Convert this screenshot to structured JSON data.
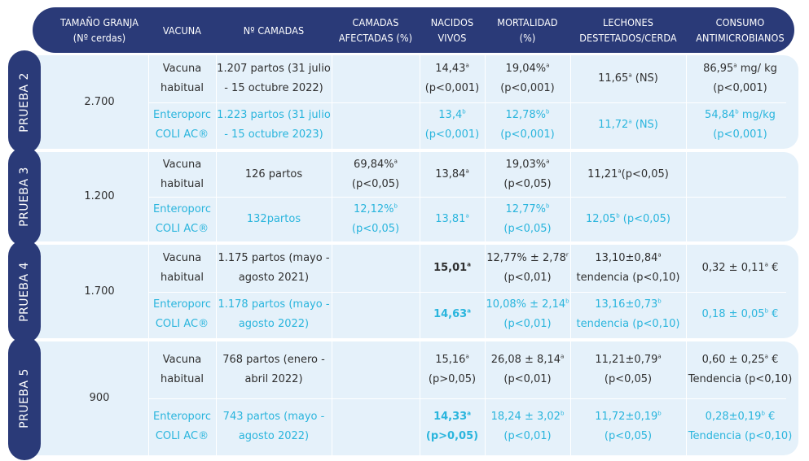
{
  "headers": [
    "TAMAÑO GRANJA\n(Nº cerdas)",
    "VACUNA",
    "Nº CAMADAS",
    "CAMADAS\nAFECTADAS (%)",
    "NACIDOS\nVIVOS",
    "MORTALIDAD\n(%)",
    "LECHONES\nDESTETADOS/CERDA",
    "CONSUMO\nANTIMICROBIANOS"
  ],
  "colors": {
    "navy": "#2a3a78",
    "highlight": "#2ab5dd",
    "row_bg": "#e5f1fa",
    "text": "#2f2f2f"
  },
  "trials": [
    {
      "label": "PRUEBA 2",
      "farm_size": "2.700",
      "rows": [
        {
          "vacuna": "Vacuna\nhabitual",
          "camadas": "1.207 partos (31 julio\n- 15 octubre 2022)",
          "afectadas": "",
          "nacidos": "14,43|a|\n(p<0,001)",
          "mortalidad": "19,04%|a|\n(p<0,001)",
          "destetados": "11,65|a| (NS)",
          "consumo": "86,95|a| mg/ kg\n(p<0,001)"
        },
        {
          "vacuna": "Enteroporc\nCOLI AC®",
          "camadas": "1.223 partos (31 julio\n- 15 octubre 2023)",
          "afectadas": "",
          "nacidos": "13,4|b|\n(p<0,001)",
          "mortalidad": "12,78%|b|\n(p<0,001)",
          "destetados": "11,72|a| (NS)",
          "consumo": "54,84|b| mg/kg\n(p<0,001)"
        }
      ]
    },
    {
      "label": "PRUEBA 3",
      "farm_size": "1.200",
      "rows": [
        {
          "vacuna": "Vacuna\nhabitual",
          "camadas": "126 partos",
          "afectadas": "69,84%|a|\n(p<0,05)",
          "nacidos": "13,84|a|",
          "mortalidad": "19,03%|a|\n(p<0,05)",
          "destetados": "11,21|a|(p<0,05)",
          "consumo": ""
        },
        {
          "vacuna": "Enteroporc\nCOLI AC®",
          "camadas": "132partos",
          "afectadas": "12,12%|b|\n(p<0,05)",
          "nacidos": "13,81|a|",
          "mortalidad": "12,77%|b|\n(p<0,05)",
          "destetados": "12,05|b| (p<0,05)",
          "consumo": ""
        }
      ]
    },
    {
      "label": "PRUEBA 4",
      "farm_size": "1.700",
      "rows": [
        {
          "vacuna": "Vacuna\nhabitual",
          "camadas": "1.175 partos (mayo -\nagosto 2021)",
          "afectadas": "",
          "nacidos": "15,01|a|",
          "nacidos_bold": true,
          "mortalidad": "12,77% ± 2,78|r|\n(p<0,01)",
          "destetados": "13,10±0,84|a|\ntendencia (p<0,10)",
          "consumo": "0,32 ± 0,11|a| €"
        },
        {
          "vacuna": "Enteroporc\nCOLI AC®",
          "camadas": "1.178 partos (mayo -\nagosto 2022)",
          "afectadas": "",
          "nacidos": "14,63|a|",
          "nacidos_bold": true,
          "mortalidad": "10,08% ± 2,14|b|\n(p<0,01)",
          "destetados": "13,16±0,73|b|\ntendencia (p<0,10)",
          "consumo": "0,18 ± 0,05|b| €"
        }
      ]
    },
    {
      "label": "PRUEBA 5",
      "farm_size": "900",
      "rows": [
        {
          "vacuna": "Vacuna\nhabitual",
          "camadas": "768 partos (enero -\nabril 2022)",
          "afectadas": "",
          "nacidos": "15,16|a|\n(p>0,05)",
          "mortalidad": "26,08 ± 8,14|a|\n(p<0,01)",
          "destetados": "11,21±0,79|a|\n(p<0,05)",
          "consumo": "0,60 ± 0,25|a| €\nTendencia (p<0,10)"
        },
        {
          "vacuna": "Enteroporc\nCOLI AC®",
          "camadas": "743 partos (mayo -\nagosto 2022)",
          "afectadas": "",
          "nacidos": "14,33|a|\n(p>0,05)",
          "nacidos_bold": true,
          "mortalidad": "18,24 ± 3,02|b|\n(p<0,01)",
          "destetados": "11,72±0,19|b|\n(p<0,05)",
          "consumo": "0,28±0,19|b| €\nTendencia (p<0,10)"
        }
      ]
    }
  ]
}
